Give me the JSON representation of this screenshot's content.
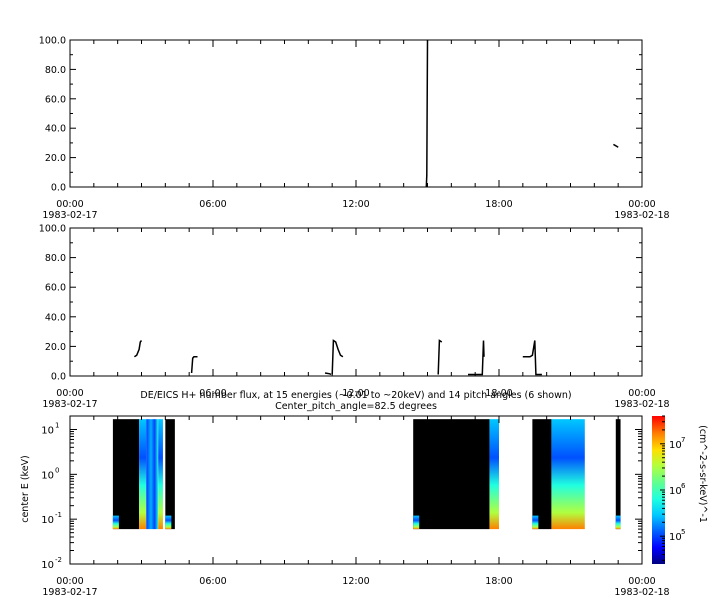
{
  "chart_data": [
    {
      "type": "line",
      "title": "",
      "xlabel": "",
      "ylabel": "",
      "ylim": [
        0,
        100
      ],
      "yticks": [
        "0.0",
        "20.0",
        "40.0",
        "60.0",
        "80.0",
        "100.0"
      ],
      "xticks": [
        {
          "hour": 0,
          "time": "00:00",
          "date": "1983-02-17"
        },
        {
          "hour": 6,
          "time": "06:00",
          "date": ""
        },
        {
          "hour": 12,
          "time": "12:00",
          "date": ""
        },
        {
          "hour": 18,
          "time": "18:00",
          "date": ""
        },
        {
          "hour": 24,
          "time": "00:00",
          "date": "1983-02-18"
        }
      ],
      "series": [
        {
          "values": [
            [
              14.95,
              0
            ],
            [
              14.97,
              8
            ],
            [
              15.0,
              100
            ]
          ]
        },
        {
          "values": [
            [
              22.8,
              29
            ],
            [
              22.9,
              28
            ],
            [
              23.0,
              27
            ]
          ]
        }
      ]
    },
    {
      "type": "line",
      "title": "",
      "xlabel": "",
      "ylabel": "",
      "ylim": [
        0,
        100
      ],
      "yticks": [
        "0.0",
        "20.0",
        "40.0",
        "60.0",
        "80.0",
        "100.0"
      ],
      "xticks": [
        {
          "hour": 0,
          "time": "00:00",
          "date": "1983-02-17"
        },
        {
          "hour": 6,
          "time": "06:00",
          "date": ""
        },
        {
          "hour": 12,
          "time": "12:00",
          "date": ""
        },
        {
          "hour": 18,
          "time": "18:00",
          "date": ""
        },
        {
          "hour": 24,
          "time": "00:00",
          "date": "1983-02-18"
        }
      ],
      "series": [
        {
          "values": [
            [
              2.7,
              13
            ],
            [
              2.8,
              14
            ],
            [
              2.9,
              18
            ],
            [
              2.95,
              23
            ],
            [
              3.0,
              24
            ]
          ]
        },
        {
          "values": [
            [
              5.1,
              2
            ],
            [
              5.15,
              12
            ],
            [
              5.2,
              13
            ],
            [
              5.35,
              13
            ]
          ]
        },
        {
          "values": [
            [
              10.7,
              2
            ],
            [
              10.9,
              1.5
            ],
            [
              10.95,
              1
            ]
          ]
        },
        {
          "values": [
            [
              11.0,
              1
            ],
            [
              11.05,
              24
            ],
            [
              11.15,
              23
            ],
            [
              11.25,
              18
            ],
            [
              11.35,
              14
            ],
            [
              11.45,
              13
            ]
          ]
        },
        {
          "values": [
            [
              15.45,
              1
            ],
            [
              15.5,
              24
            ],
            [
              15.6,
              23
            ]
          ]
        },
        {
          "values": [
            [
              16.7,
              1
            ],
            [
              17.3,
              1
            ],
            [
              17.35,
              24
            ],
            [
              17.37,
              13
            ]
          ]
        },
        {
          "values": [
            [
              19.0,
              13
            ],
            [
              19.3,
              13
            ],
            [
              19.4,
              14
            ],
            [
              19.5,
              24
            ],
            [
              19.55,
              1
            ],
            [
              19.8,
              1
            ]
          ]
        }
      ]
    },
    {
      "type": "heatmap",
      "title": "DE/EICS  H+ number flux, at 15 energies (~0.01 to ~20keV) and 14 pitch angles (6 shown)",
      "subtitle": "Center_pitch_angle=82.5 degrees",
      "xlabel": "",
      "ylabel": "center E (keV)",
      "ylim": [
        0.01,
        20
      ],
      "yscale": "log",
      "yticks": [
        {
          "base": "10",
          "exp": "-2"
        },
        {
          "base": "10",
          "exp": "-1"
        },
        {
          "base": "10",
          "exp": "0"
        },
        {
          "base": "10",
          "exp": "1"
        }
      ],
      "xticks": [
        {
          "hour": 0,
          "time": "00:00",
          "date": "1983-02-17"
        },
        {
          "hour": 6,
          "time": "06:00",
          "date": ""
        },
        {
          "hour": 12,
          "time": "12:00",
          "date": ""
        },
        {
          "hour": 18,
          "time": "18:00",
          "date": ""
        },
        {
          "hour": 24,
          "time": "00:00",
          "date": "1983-02-18"
        }
      ],
      "colorbar": {
        "label": "(cm^-2-s-sr-keV)^-1",
        "scale": "log",
        "range": [
          25000,
          40000000
        ],
        "ticks": [
          {
            "base": "10",
            "exp": "5"
          },
          {
            "base": "10",
            "exp": "6"
          },
          {
            "base": "10",
            "exp": "7"
          }
        ],
        "colors": [
          "#00007f",
          "#0000ff",
          "#0060ff",
          "#00c8ff",
          "#20ffe0",
          "#60ff90",
          "#b0ff40",
          "#ffe000",
          "#ff8000",
          "#ff0000"
        ]
      },
      "data_intervals_hours": [
        {
          "start": 1.8,
          "end": 2.9,
          "fill": "black"
        },
        {
          "start": 2.9,
          "end": 3.2,
          "fill": "mixed"
        },
        {
          "start": 3.2,
          "end": 3.7,
          "fill": "blue"
        },
        {
          "start": 3.7,
          "end": 3.9,
          "fill": "mixed"
        },
        {
          "start": 4.0,
          "end": 4.4,
          "fill": "black"
        },
        {
          "start": 14.4,
          "end": 17.6,
          "fill": "black"
        },
        {
          "start": 17.6,
          "end": 18.0,
          "fill": "mixed"
        },
        {
          "start": 19.4,
          "end": 20.2,
          "fill": "black"
        },
        {
          "start": 20.2,
          "end": 21.6,
          "fill": "mixed"
        },
        {
          "start": 22.9,
          "end": 23.1,
          "fill": "black"
        }
      ]
    }
  ]
}
